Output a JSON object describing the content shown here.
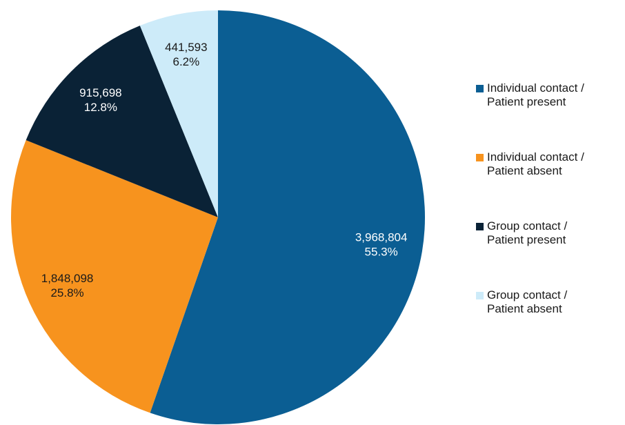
{
  "chart_data": {
    "type": "pie",
    "categories": [
      "Individual contact / Patient present",
      "Individual contact / Patient absent",
      "Group contact / Patient present",
      "Group contact / Patient absent"
    ],
    "values": [
      3968804,
      1848098,
      915698,
      441593
    ],
    "value_labels": [
      "3,968,804",
      "1,848,098",
      "915,698",
      "441,593"
    ],
    "percent_labels": [
      "55.3%",
      "25.8%",
      "12.8%",
      "6.2%"
    ],
    "colors": [
      "#0b5e93",
      "#f7931e",
      "#0a2236",
      "#cdebf9"
    ],
    "label_colors": [
      "#ffffff",
      "#1a1a1a",
      "#ffffff",
      "#1a1a1a"
    ],
    "legend": "right"
  }
}
